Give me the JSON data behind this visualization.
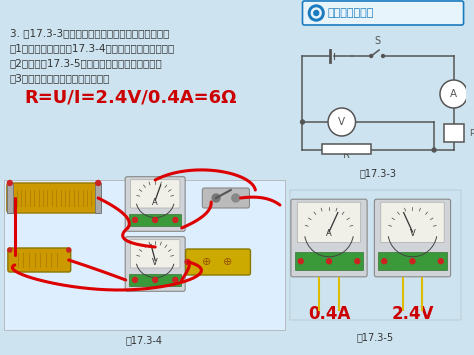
{
  "bg_color": "#cde3f0",
  "badge_border_color": "#1a7bbf",
  "badge_fill_color": "#e8f4fc",
  "badge_text": "动手动脑学物理",
  "badge_text_color": "#1a7bbf",
  "badge_icon_color": "#1a7bbf",
  "text_color": "#333333",
  "formula_color": "#cc0000",
  "reading_color": "#cc0000",
  "main_lines": [
    "3. 图17.3-3是用伏安法测量某未知电阻的电路图。",
    "（1）根据电路图将图17.3-4所示的实物图连接起来；",
    "（2）读出图17.3-5所示电流表和电压表的示数；",
    "（3）算出被测电阻本次的测量值。"
  ],
  "formula": "R=U/I=2.4V/0.4A=6Ω",
  "label_333": "图17.3-3",
  "label_334": "图17.3-4",
  "label_335": "图17.3-5",
  "reading_A": "0.4A",
  "reading_V": "2.4V",
  "wire_color": "#dd0000",
  "circuit_line_color": "#555555",
  "meter_face_color": "#e8e8e0",
  "meter_body_color": "#c8ccd0",
  "meter_base_color": "#b8bcc0",
  "green_board_color": "#3a9a3a",
  "rheostat_color": "#cc9900",
  "battery_color": "#cc9900",
  "resistor_color": "#cc9900"
}
